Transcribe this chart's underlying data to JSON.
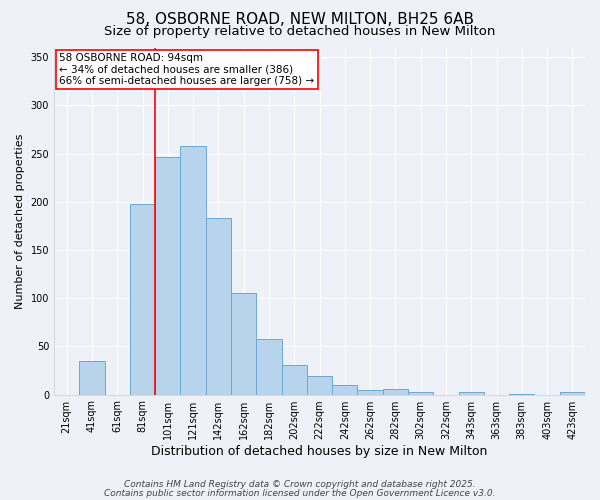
{
  "title": "58, OSBORNE ROAD, NEW MILTON, BH25 6AB",
  "subtitle": "Size of property relative to detached houses in New Milton",
  "xlabel": "Distribution of detached houses by size in New Milton",
  "ylabel": "Number of detached properties",
  "categories": [
    "21sqm",
    "41sqm",
    "61sqm",
    "81sqm",
    "101sqm",
    "121sqm",
    "142sqm",
    "162sqm",
    "182sqm",
    "202sqm",
    "222sqm",
    "242sqm",
    "262sqm",
    "282sqm",
    "302sqm",
    "322sqm",
    "343sqm",
    "363sqm",
    "383sqm",
    "403sqm",
    "423sqm"
  ],
  "values": [
    0,
    35,
    0,
    198,
    246,
    258,
    183,
    105,
    58,
    31,
    19,
    10,
    5,
    6,
    3,
    0,
    3,
    0,
    1,
    0,
    3
  ],
  "bar_color": "#b8d4ec",
  "bar_edge_color": "#6aaad4",
  "red_line_index": 3.5,
  "annotation_text": "58 OSBORNE ROAD: 94sqm\n← 34% of detached houses are smaller (386)\n66% of semi-detached houses are larger (758) →",
  "annotation_box_color": "white",
  "annotation_box_edge_color": "red",
  "ylim": [
    0,
    360
  ],
  "yticks": [
    0,
    50,
    100,
    150,
    200,
    250,
    300,
    350
  ],
  "background_color": "#eef2f8",
  "grid_color": "#ffffff",
  "footer_line1": "Contains HM Land Registry data © Crown copyright and database right 2025.",
  "footer_line2": "Contains public sector information licensed under the Open Government Licence v3.0.",
  "title_fontsize": 11,
  "subtitle_fontsize": 9.5,
  "xlabel_fontsize": 9,
  "ylabel_fontsize": 8,
  "tick_fontsize": 7,
  "annotation_fontsize": 7.5,
  "footer_fontsize": 6.5
}
